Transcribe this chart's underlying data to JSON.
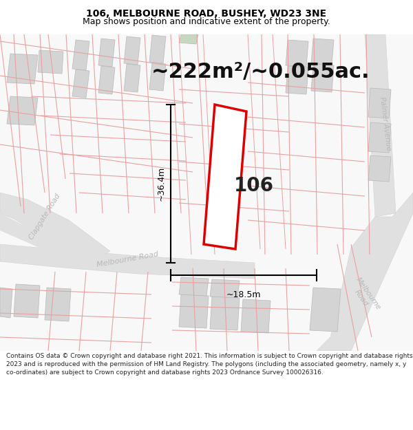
{
  "title_line1": "106, MELBOURNE ROAD, BUSHEY, WD23 3NE",
  "title_line2": "Map shows position and indicative extent of the property.",
  "area_label": "~222m²/~0.055ac.",
  "house_number": "106",
  "dim_height": "~36.4m",
  "dim_width": "~18.5m",
  "footer_text": "Contains OS data © Crown copyright and database right 2021. This information is subject to Crown copyright and database rights 2023 and is reproduced with the permission of HM Land Registry. The polygons (including the associated geometry, namely x, y co-ordinates) are subject to Crown copyright and database rights 2023 Ordnance Survey 100026316.",
  "map_bg": "#f5f5f5",
  "road_fill": "#e0e0e0",
  "building_fill": "#d4d4d4",
  "plot_stroke": "#dd0000",
  "plot_fill": "#ffffff",
  "cadastral_color": "#e8a0a0",
  "road_text_color": "#b0b0b0",
  "dim_line_color": "#000000",
  "text_color": "#000000",
  "title_fontsize": 10,
  "subtitle_fontsize": 9,
  "area_fontsize": 22,
  "dim_fontsize": 9,
  "road_label_fontsize": 8,
  "house_fontsize": 20,
  "footer_fontsize": 6.5
}
